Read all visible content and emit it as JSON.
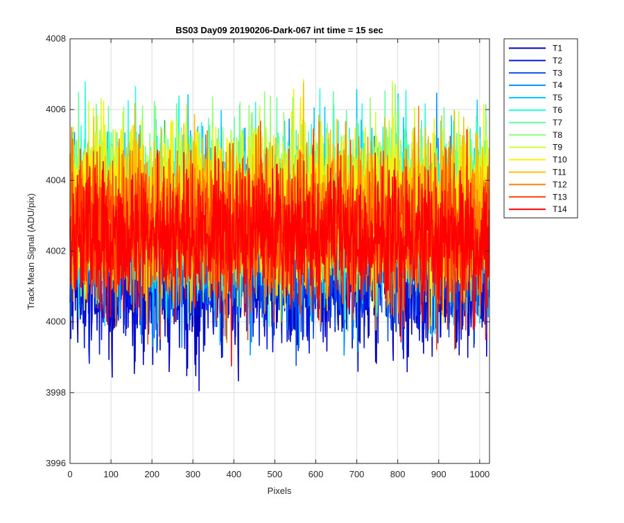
{
  "chart_data": {
    "type": "line",
    "title": "BS03 Day09 20190206-Dark-067 int time = 15 sec",
    "xlabel": "Pixels",
    "ylabel": "Track Mean Signal (ADU/pix)",
    "xlim": [
      0,
      1024
    ],
    "ylim": [
      3996,
      4008
    ],
    "xticks": [
      0,
      100,
      200,
      300,
      400,
      500,
      600,
      700,
      800,
      900,
      1000
    ],
    "yticks": [
      3996,
      3998,
      4000,
      4002,
      4004,
      4006,
      4008
    ],
    "grid": true,
    "legend_position": "outside-top-right",
    "n_points_per_series": 1024,
    "series": [
      {
        "name": "T1",
        "color": "#0000BF",
        "mean": 4001.2,
        "spread": 1.0,
        "min": 3997.6,
        "max": 4005.9
      },
      {
        "name": "T2",
        "color": "#0016E0",
        "mean": 4001.4,
        "spread": 1.0,
        "min": 3997.9,
        "max": 4006.0
      },
      {
        "name": "T3",
        "color": "#0050F0",
        "mean": 4001.9,
        "spread": 1.05,
        "min": 3998.5,
        "max": 4006.3
      },
      {
        "name": "T4",
        "color": "#0090FF",
        "mean": 4002.5,
        "spread": 1.1,
        "min": 3998.9,
        "max": 4007.3
      },
      {
        "name": "T5",
        "color": "#00C8FF",
        "mean": 4003.0,
        "spread": 1.15,
        "min": 3999.2,
        "max": 4006.9
      },
      {
        "name": "T6",
        "color": "#20FFE0",
        "mean": 4003.3,
        "spread": 1.15,
        "min": 3999.4,
        "max": 4007.9
      },
      {
        "name": "T7",
        "color": "#60FFA0",
        "mean": 4003.4,
        "spread": 1.1,
        "min": 3999.6,
        "max": 4006.8
      },
      {
        "name": "T8",
        "color": "#90FF70",
        "mean": 4003.4,
        "spread": 1.1,
        "min": 3999.6,
        "max": 4007.4
      },
      {
        "name": "T9",
        "color": "#D0FF30",
        "mean": 4003.3,
        "spread": 1.1,
        "min": 3999.6,
        "max": 4007.0
      },
      {
        "name": "T10",
        "color": "#FFF000",
        "mean": 4003.2,
        "spread": 1.1,
        "min": 3999.4,
        "max": 4007.8
      },
      {
        "name": "T11",
        "color": "#FFBF00",
        "mean": 4003.0,
        "spread": 1.05,
        "min": 3999.3,
        "max": 4007.4
      },
      {
        "name": "T12",
        "color": "#FF8000",
        "mean": 4002.8,
        "spread": 1.0,
        "min": 3999.3,
        "max": 4006.6
      },
      {
        "name": "T13",
        "color": "#FF4000",
        "mean": 4002.5,
        "spread": 1.0,
        "min": 3999.2,
        "max": 4006.3
      },
      {
        "name": "T14",
        "color": "#FF0000",
        "mean": 4002.4,
        "spread": 0.95,
        "min": 3997.9,
        "max": 4006.1
      }
    ]
  }
}
